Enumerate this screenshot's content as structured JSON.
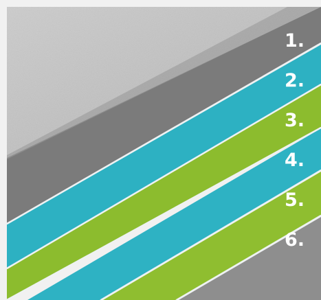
{
  "layers": [
    {
      "number": "1.",
      "color": "#c2c2c2"
    },
    {
      "number": "2.",
      "color": "#2fb3c4"
    },
    {
      "number": "3.",
      "color": "#8cbd2f"
    },
    {
      "number": "4.",
      "color": "#2fb3c4"
    },
    {
      "number": "5.",
      "color": "#8cbd2f"
    },
    {
      "number": "6.",
      "color": "#8f8f8f"
    }
  ],
  "colors": {
    "background": "#f1f1f1",
    "edge_gray": "#7d7d7d",
    "separator": "#e9eef0"
  }
}
